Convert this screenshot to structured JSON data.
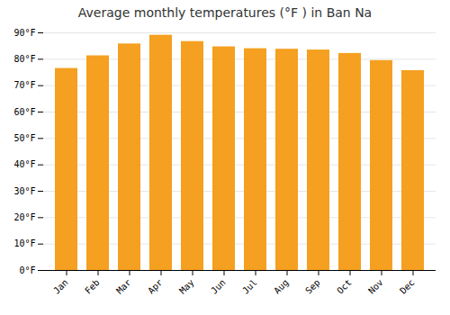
{
  "chart_data": {
    "type": "bar",
    "title": "Average monthly temperatures (°F ) in Ban Na",
    "categories": [
      "Jan",
      "Feb",
      "Mar",
      "Apr",
      "May",
      "Jun",
      "Jul",
      "Aug",
      "Sep",
      "Oct",
      "Nov",
      "Dec"
    ],
    "values": [
      76.5,
      81.3,
      85.8,
      89.1,
      86.7,
      84.7,
      84.0,
      83.8,
      83.5,
      82.2,
      79.5,
      75.7
    ],
    "color": "#F5A020",
    "ylim": [
      0,
      90
    ],
    "yticks": [
      {
        "value": 0,
        "label": "0°F"
      },
      {
        "value": 10,
        "label": "10°F"
      },
      {
        "value": 20,
        "label": "20°F"
      },
      {
        "value": 30,
        "label": "30°F"
      },
      {
        "value": 40,
        "label": "40°F"
      },
      {
        "value": 50,
        "label": "50°F"
      },
      {
        "value": 60,
        "label": "60°F"
      },
      {
        "value": 70,
        "label": "70°F"
      },
      {
        "value": 80,
        "label": "80°F"
      },
      {
        "value": 90,
        "label": "90°F"
      }
    ],
    "grid": true
  }
}
